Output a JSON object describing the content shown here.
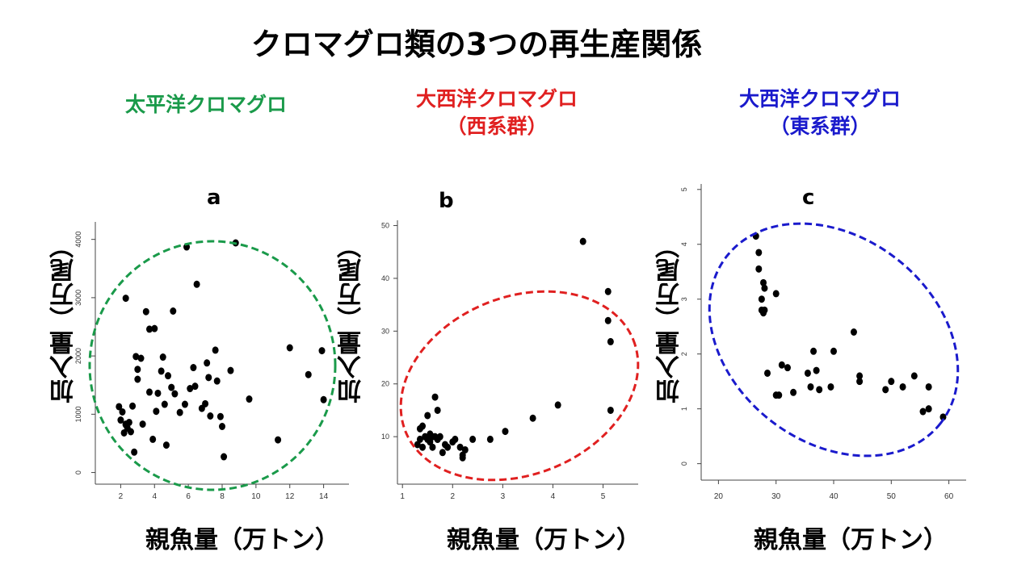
{
  "title": "クロマグロ類の3つの再生産関係",
  "groups": [
    {
      "line1": "太平洋クロマグロ",
      "line2": "",
      "color": "#1a9a4a"
    },
    {
      "line1": "大西洋クロマグロ",
      "line2": "（西系群）",
      "color": "#e02020"
    },
    {
      "line1": "大西洋クロマグロ",
      "line2": "（東系群）",
      "color": "#1a1acc"
    }
  ],
  "axis_labels": {
    "y": "加入量（万尾）",
    "x": "親魚量（万トン）"
  },
  "chart_data": [
    {
      "type": "scatter",
      "panel": "a",
      "ellipse_color": "#1a9a4a",
      "xlim": [
        0.5,
        15.5
      ],
      "ylim": [
        -200,
        4300
      ],
      "xticks": [
        2,
        4,
        6,
        8,
        10,
        12,
        14
      ],
      "yticks": [
        0,
        1000,
        2000,
        3000,
        4000
      ],
      "ytick_labels": [
        "0",
        "1000",
        "2000",
        "3000",
        "4000"
      ],
      "x": [
        1.9,
        2.1,
        2.0,
        2.3,
        2.2,
        2.4,
        2.5,
        2.6,
        2.3,
        2.7,
        2.8,
        2.9,
        3.0,
        3.2,
        3.3,
        3.5,
        3.7,
        3.9,
        4.0,
        4.1,
        4.2,
        4.4,
        4.5,
        4.6,
        4.7,
        4.8,
        5.0,
        5.2,
        5.5,
        5.8,
        6.1,
        6.3,
        6.4,
        6.8,
        7.0,
        7.1,
        7.2,
        7.3,
        7.6,
        7.7,
        7.9,
        8.0,
        8.1,
        8.5,
        9.6,
        11.3,
        12.0,
        13.1,
        13.9,
        14.0,
        2.3,
        3.0,
        3.7,
        5.1,
        6.5,
        5.9,
        8.8
      ],
      "y": [
        1130,
        1040,
        900,
        830,
        680,
        760,
        860,
        700,
        820,
        1140,
        350,
        1990,
        1770,
        1960,
        830,
        2760,
        2460,
        570,
        2470,
        1050,
        1360,
        1740,
        1980,
        1170,
        470,
        1660,
        1460,
        1350,
        1030,
        1170,
        1440,
        1800,
        1480,
        1100,
        1180,
        1880,
        1630,
        970,
        2100,
        1570,
        960,
        790,
        270,
        1750,
        1260,
        560,
        2140,
        1680,
        2090,
        1250,
        2990,
        1600,
        1380,
        2770,
        3230,
        3870,
        3940
      ]
    },
    {
      "type": "scatter",
      "panel": "b",
      "ellipse_color": "#e02020",
      "xlim": [
        0.9,
        5.7
      ],
      "ylim": [
        1,
        51
      ],
      "xticks": [
        1,
        2,
        3,
        4,
        5
      ],
      "yticks": [
        10,
        20,
        30,
        40,
        50
      ],
      "ytick_labels": [
        "10",
        "20",
        "30",
        "40",
        "50"
      ],
      "x": [
        1.35,
        1.3,
        1.35,
        1.4,
        1.45,
        1.5,
        1.5,
        1.55,
        1.6,
        1.6,
        1.65,
        1.7,
        1.7,
        1.75,
        1.8,
        1.85,
        1.9,
        2.0,
        2.05,
        2.15,
        2.2,
        2.25,
        2.4,
        2.75,
        3.05,
        3.6,
        4.1,
        4.6,
        5.1,
        5.1,
        5.15,
        5.15,
        1.4,
        1.55,
        1.65,
        1.7,
        2.2
      ],
      "y": [
        9.5,
        8.5,
        11.5,
        12.0,
        10.0,
        9.5,
        14.0,
        10.5,
        10.0,
        8.0,
        17.5,
        9.5,
        15.0,
        10.0,
        7.0,
        8.5,
        8.0,
        9.0,
        9.5,
        8.0,
        6.5,
        7.5,
        9.5,
        9.5,
        11.0,
        13.5,
        16.0,
        47.0,
        37.5,
        32.0,
        28.0,
        15.0,
        8.0,
        9.0,
        10.0,
        9.5,
        6.0
      ]
    },
    {
      "type": "scatter",
      "panel": "c",
      "ellipse_color": "#1a1acc",
      "xlim": [
        17,
        63
      ],
      "ylim": [
        -0.3,
        5.1
      ],
      "xticks": [
        20,
        30,
        40,
        50,
        60
      ],
      "yticks": [
        0,
        1,
        2,
        3,
        4,
        5
      ],
      "ytick_labels": [
        "0",
        "1",
        "2",
        "3",
        "4",
        "5"
      ],
      "x": [
        26.5,
        27.0,
        27.0,
        27.5,
        27.5,
        27.8,
        28.0,
        27.8,
        28.5,
        30.0,
        30.5,
        31.0,
        32.0,
        28.0,
        30.0,
        33.0,
        35.5,
        36.0,
        36.5,
        37.0,
        37.5,
        39.5,
        40.0,
        43.5,
        44.5,
        44.5,
        49.0,
        50.0,
        52.0,
        54.0,
        55.5,
        56.5,
        56.5,
        59.0
      ],
      "y": [
        4.15,
        3.85,
        3.55,
        3.0,
        2.8,
        2.75,
        3.2,
        3.3,
        1.65,
        3.1,
        1.25,
        1.8,
        1.75,
        2.8,
        1.25,
        1.3,
        1.65,
        1.4,
        2.05,
        1.7,
        1.35,
        1.4,
        2.05,
        2.4,
        1.6,
        1.5,
        1.35,
        1.5,
        1.4,
        1.6,
        0.95,
        1.0,
        1.4,
        0.85
      ]
    }
  ]
}
